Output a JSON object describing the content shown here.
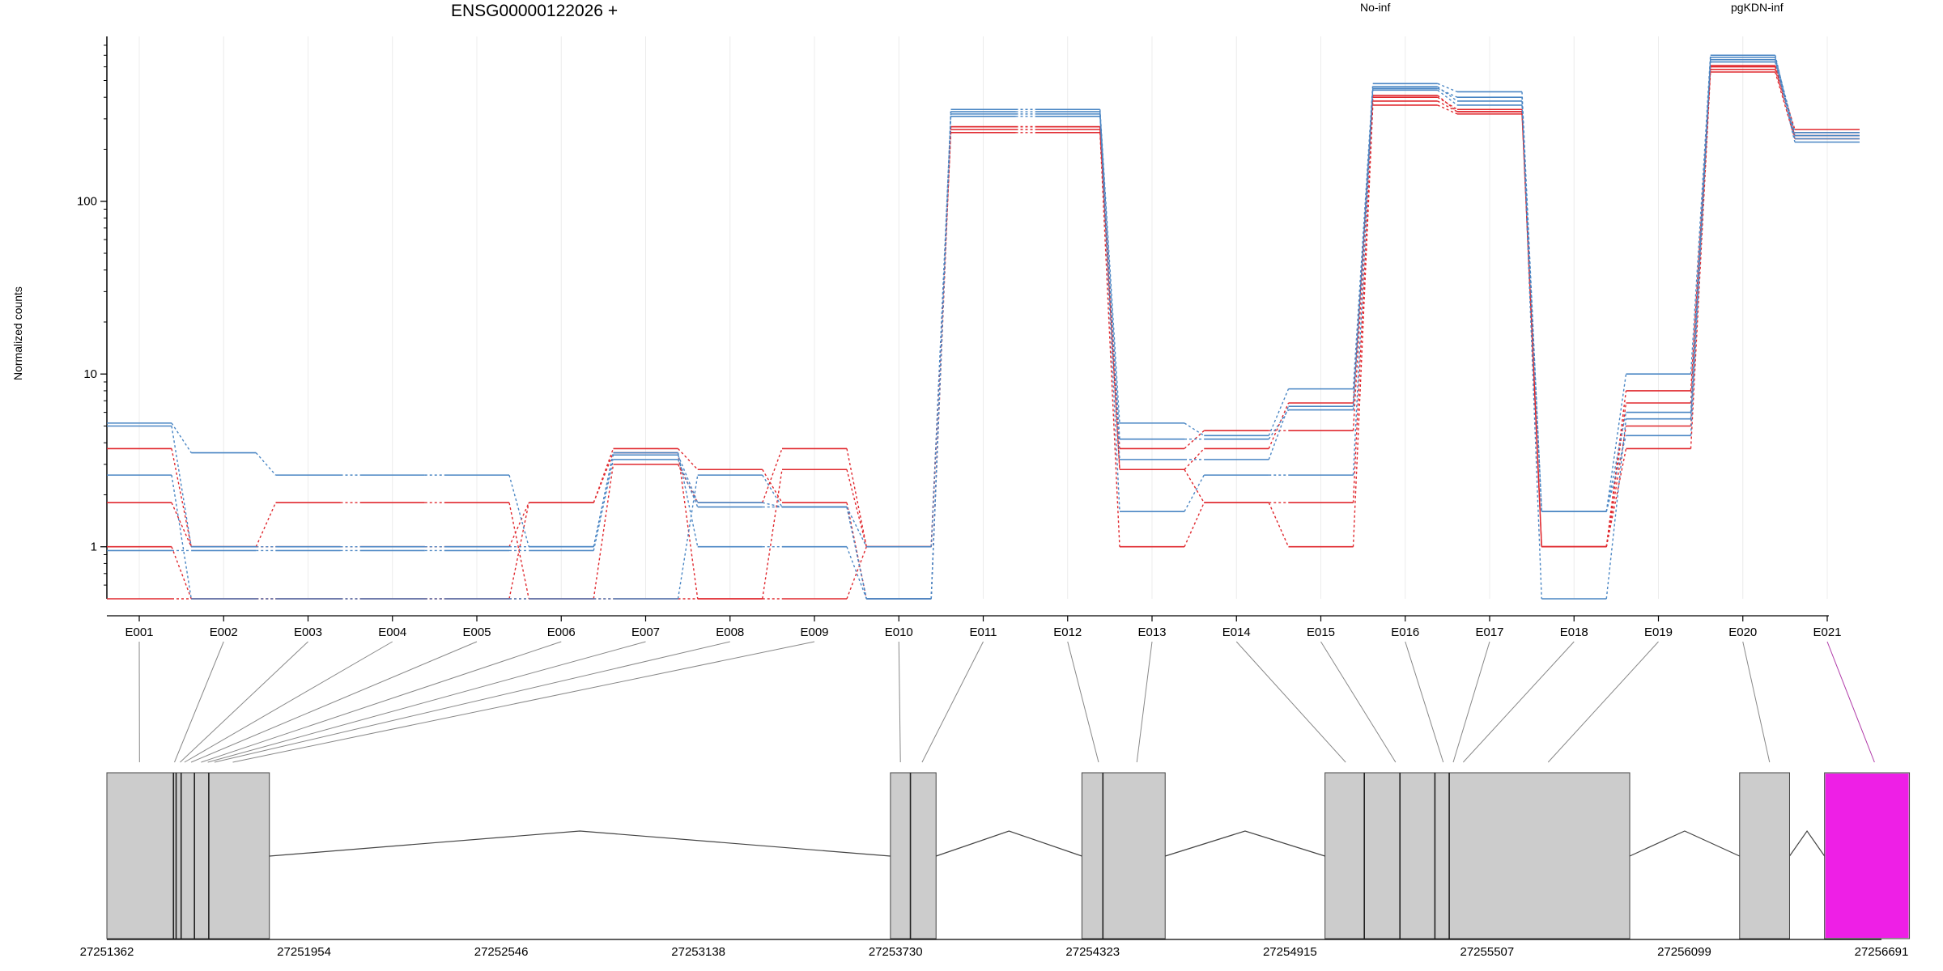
{
  "chart_data": {
    "type": "line",
    "title": "ENSG00000122026 +",
    "ylabel": "Normalized counts",
    "xlabel": "",
    "y_scale": "log",
    "y_ticks": [
      1,
      10,
      100
    ],
    "y_tick_labels": [
      "1",
      "10",
      "100"
    ],
    "y_range": [
      0.5,
      900
    ],
    "categories": [
      "E001",
      "E002",
      "E003",
      "E004",
      "E005",
      "E006",
      "E007",
      "E008",
      "E009",
      "E010",
      "E011",
      "E012",
      "E013",
      "E014",
      "E015",
      "E016",
      "E017",
      "E018",
      "E019",
      "E020",
      "E021"
    ],
    "legend": [
      "No-inf",
      "pgKDN-inf"
    ],
    "series_colors": {
      "No-inf": "#e0282e",
      "pgKDN-inf": "#4a86c4"
    },
    "series": [
      {
        "group": "No-inf",
        "values": [
          1.0,
          0.5,
          0.5,
          0.5,
          0.5,
          1.8,
          3.5,
          0.5,
          0.5,
          1.0,
          250,
          250,
          1.0,
          1.8,
          1.0,
          360,
          320,
          1.0,
          3.7,
          560,
          230
        ]
      },
      {
        "group": "No-inf",
        "values": [
          1.8,
          1.0,
          1.8,
          1.8,
          1.8,
          0.5,
          3.0,
          1.8,
          3.7,
          1.0,
          270,
          270,
          2.8,
          1.8,
          1.8,
          380,
          330,
          1.0,
          5.0,
          580,
          240
        ]
      },
      {
        "group": "No-inf",
        "values": [
          3.7,
          1.0,
          1.0,
          1.0,
          1.0,
          1.8,
          3.7,
          2.8,
          1.8,
          0.5,
          270,
          270,
          3.7,
          4.7,
          4.7,
          400,
          340,
          1.0,
          6.8,
          600,
          250
        ]
      },
      {
        "group": "No-inf",
        "values": [
          0.5,
          0.5,
          0.5,
          0.5,
          0.5,
          0.5,
          0.5,
          0.5,
          2.8,
          1.0,
          260,
          260,
          2.8,
          3.7,
          6.8,
          410,
          330,
          1.0,
          8.0,
          610,
          260
        ]
      },
      {
        "group": "pgKDN-inf",
        "values": [
          5.2,
          3.5,
          2.6,
          2.6,
          2.6,
          1.0,
          3.5,
          1.0,
          1.0,
          0.5,
          340,
          340,
          5.2,
          4.4,
          8.2,
          480,
          430,
          1.6,
          10.0,
          700,
          230
        ]
      },
      {
        "group": "pgKDN-inf",
        "values": [
          2.6,
          0.5,
          0.5,
          0.5,
          0.5,
          0.5,
          0.5,
          2.6,
          1.7,
          1.0,
          320,
          320,
          1.6,
          2.6,
          2.6,
          460,
          380,
          1.6,
          4.4,
          660,
          220
        ]
      },
      {
        "group": "pgKDN-inf",
        "values": [
          0.95,
          0.95,
          0.95,
          0.95,
          0.95,
          0.95,
          3.2,
          1.7,
          1.7,
          0.5,
          310,
          310,
          3.2,
          3.2,
          6.5,
          440,
          360,
          1.6,
          6.0,
          640,
          240
        ]
      },
      {
        "group": "pgKDN-inf",
        "values": [
          5.0,
          1.0,
          1.0,
          1.0,
          1.0,
          1.0,
          3.4,
          1.8,
          1.7,
          0.5,
          330,
          330,
          4.2,
          4.2,
          6.2,
          450,
          400,
          0.5,
          5.5,
          680,
          250
        ]
      }
    ],
    "gene_model": {
      "genomic_ticks": [
        "27251362",
        "27251954",
        "27252546",
        "27253138",
        "27253730",
        "27254323",
        "27254915",
        "27255507",
        "27256099",
        "27256691"
      ],
      "genomic_range": [
        27251362,
        27256691
      ],
      "exon_blocks": [
        [
          27251362,
          27251850
        ],
        [
          27253715,
          27253852
        ],
        [
          27254290,
          27254540
        ],
        [
          27255020,
          27255935
        ],
        [
          27256265,
          27256415
        ],
        [
          27256520,
          27256775
        ]
      ],
      "intron_pairs": [
        [
          0,
          1
        ],
        [
          1,
          2
        ],
        [
          2,
          3
        ],
        [
          3,
          4
        ],
        [
          4,
          5
        ]
      ],
      "exon_boundaries": [
        27251562,
        27251570,
        27251585,
        27251625,
        27251668,
        27253775,
        27254353,
        27255138,
        27255245,
        27255350,
        27255393
      ],
      "highlighted_exon": "E021",
      "highlight_color": "#ee1fe6",
      "exon_block_color": "#cccccc",
      "exon_positions": [
        27251460,
        27251565,
        27251582,
        27251595,
        27251615,
        27251645,
        27251665,
        27251685,
        27251740,
        27253745,
        27253810,
        27254340,
        27254455,
        27255082,
        27255232,
        27255375,
        27255405,
        27255435,
        27255690,
        27256355,
        27256670
      ]
    }
  }
}
